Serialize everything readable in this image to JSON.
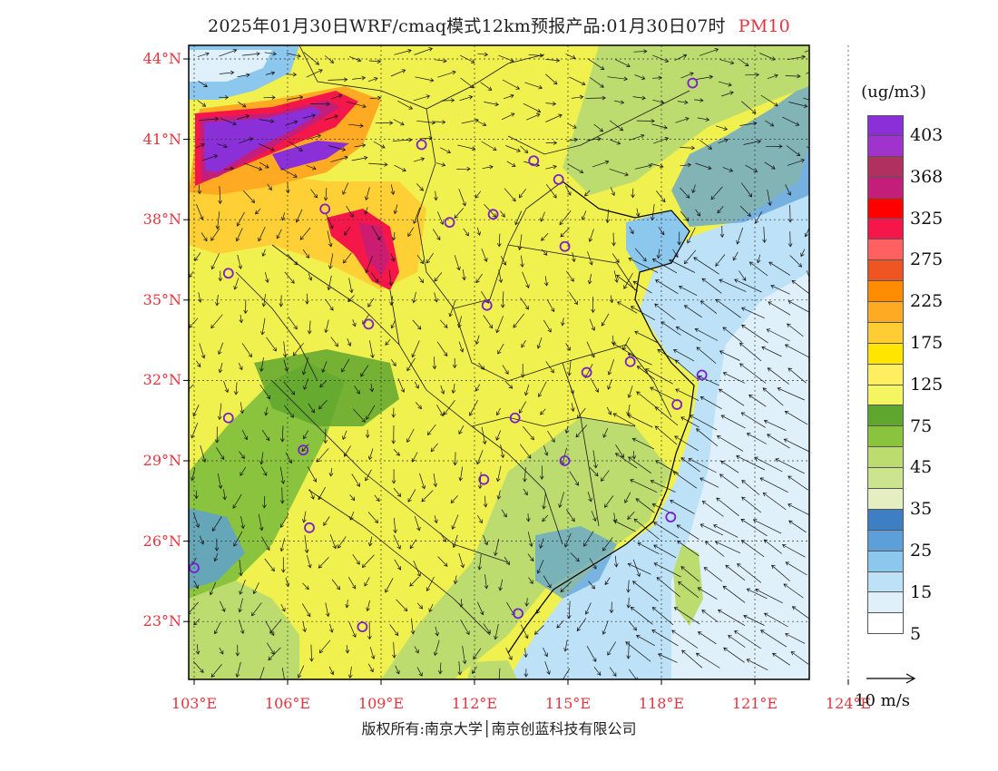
{
  "title": {
    "text": "2025年01月30日WRF/cmaq模式12km预报产品:01月30日07时",
    "variable": "PM10"
  },
  "lat_labels": [
    "44°N",
    "41°N",
    "38°N",
    "35°N",
    "32°N",
    "29°N",
    "26°N",
    "23°N"
  ],
  "lon_labels": [
    "103°E",
    "106°E",
    "109°E",
    "112°E",
    "115°E",
    "118°E",
    "121°E",
    "124°E"
  ],
  "colorbar": {
    "unit": "(ug/m3)",
    "colors": [
      "#8b2fd8",
      "#a033cc",
      "#b03060",
      "#c21e7a",
      "#ff0000",
      "#f5174a",
      "#ff6060",
      "#ee5522",
      "#ff8c00",
      "#ffaa22",
      "#ffcc33",
      "#ffe500",
      "#ffee60",
      "#f4f560",
      "#5fa62e",
      "#8ac33e",
      "#bcdc70",
      "#cce490",
      "#e4eec0",
      "#3d7fc2",
      "#5d9fd8",
      "#8cc7ee",
      "#bde1f6",
      "#e0f0fb",
      "#ffffff"
    ],
    "labels": [
      "403",
      "368",
      "325",
      "275",
      "225",
      "175",
      "125",
      "75",
      "45",
      "35",
      "25",
      "15",
      "5"
    ]
  },
  "wind_reference": {
    "label": "10 m/s"
  },
  "cities": [
    {
      "lon": 119.0,
      "lat": 43.1
    },
    {
      "lon": 110.3,
      "lat": 40.8
    },
    {
      "lon": 113.9,
      "lat": 40.2
    },
    {
      "lon": 114.7,
      "lat": 39.5
    },
    {
      "lon": 107.2,
      "lat": 38.4
    },
    {
      "lon": 111.2,
      "lat": 37.9
    },
    {
      "lon": 112.6,
      "lat": 38.2
    },
    {
      "lon": 114.9,
      "lat": 37.0
    },
    {
      "lon": 104.1,
      "lat": 36.0
    },
    {
      "lon": 112.4,
      "lat": 34.8
    },
    {
      "lon": 108.6,
      "lat": 34.1
    },
    {
      "lon": 117.0,
      "lat": 32.7
    },
    {
      "lon": 115.6,
      "lat": 32.3
    },
    {
      "lon": 119.3,
      "lat": 32.2
    },
    {
      "lon": 118.5,
      "lat": 31.1
    },
    {
      "lon": 104.1,
      "lat": 30.6
    },
    {
      "lon": 113.3,
      "lat": 30.6
    },
    {
      "lon": 106.5,
      "lat": 29.4
    },
    {
      "lon": 114.9,
      "lat": 29.0
    },
    {
      "lon": 112.3,
      "lat": 28.3
    },
    {
      "lon": 106.7,
      "lat": 26.5
    },
    {
      "lon": 118.3,
      "lat": 26.9
    },
    {
      "lon": 103.0,
      "lat": 25.0
    },
    {
      "lon": 108.4,
      "lat": 22.8
    },
    {
      "lon": 113.4,
      "lat": 23.3
    }
  ],
  "copyright": {
    "text": "版权所有:南京大学│南京创蓝科技有限公司"
  }
}
